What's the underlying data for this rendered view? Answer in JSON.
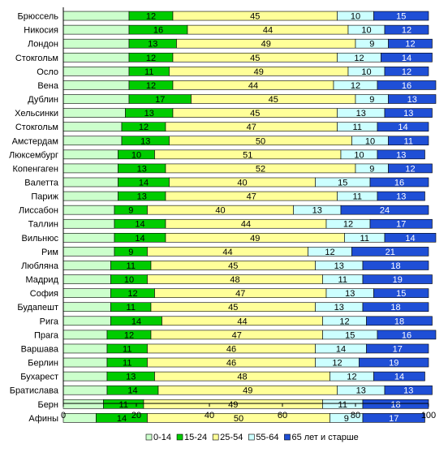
{
  "chart_data": {
    "type": "bar",
    "orientation": "horizontal",
    "stacked": true,
    "title": "",
    "xlabel": "",
    "ylabel": "",
    "xlim": [
      0,
      100
    ],
    "xticks": [
      0,
      20,
      40,
      60,
      80,
      100
    ],
    "grid": false,
    "legend_position": "bottom",
    "categories": [
      "Брюссель",
      "Никосия",
      "Лондон",
      "Стокгольм",
      "Осло",
      "Вена",
      "Дублин",
      "Хельсинки",
      "Стокгольм",
      "Амстердам",
      "Люксембург",
      "Копенгаген",
      "Валетта",
      "Париж",
      "Лиссабон",
      "Таллин",
      "Вильнюс",
      "Рим",
      "Любляна",
      "Мадрид",
      "София",
      "Будапешт",
      "Рига",
      "Прага",
      "Варшава",
      "Берлин",
      "Бухарест",
      "Братислава",
      "Берн",
      "Афины"
    ],
    "offsets": [
      18,
      18,
      18,
      18,
      18,
      18,
      18,
      17,
      16,
      16,
      15,
      15,
      15,
      15,
      14,
      14,
      14,
      14,
      13,
      13,
      13,
      13,
      13,
      12,
      12,
      12,
      12,
      12,
      11,
      9
    ],
    "series": [
      {
        "name": "0-14",
        "color": "#ccffcc",
        "values": [
          18,
          18,
          18,
          18,
          18,
          18,
          18,
          17,
          16,
          16,
          15,
          15,
          15,
          15,
          14,
          14,
          14,
          14,
          13,
          13,
          13,
          13,
          13,
          12,
          12,
          12,
          12,
          12,
          11,
          9
        ]
      },
      {
        "name": "15-24",
        "color": "#00cc00",
        "values": [
          12,
          16,
          13,
          12,
          11,
          12,
          17,
          13,
          12,
          13,
          10,
          13,
          14,
          13,
          9,
          14,
          14,
          9,
          11,
          10,
          12,
          11,
          14,
          12,
          11,
          11,
          13,
          14,
          11,
          14
        ]
      },
      {
        "name": "25-54",
        "color": "#ffff99",
        "values": [
          45,
          44,
          49,
          45,
          49,
          44,
          45,
          45,
          47,
          50,
          51,
          52,
          40,
          47,
          40,
          44,
          49,
          44,
          45,
          48,
          47,
          45,
          44,
          47,
          46,
          46,
          48,
          49,
          49,
          50
        ]
      },
      {
        "name": "55-64",
        "color": "#ccffff",
        "values": [
          10,
          10,
          9,
          12,
          10,
          12,
          9,
          13,
          11,
          10,
          10,
          9,
          15,
          11,
          13,
          12,
          11,
          12,
          13,
          11,
          13,
          13,
          12,
          15,
          14,
          12,
          12,
          13,
          11,
          9
        ]
      },
      {
        "name": "65 лет и старше",
        "color": "#1f4fd6",
        "values": [
          15,
          12,
          12,
          14,
          12,
          16,
          13,
          13,
          14,
          11,
          13,
          12,
          16,
          13,
          24,
          17,
          14,
          21,
          18,
          19,
          15,
          18,
          18,
          16,
          17,
          19,
          14,
          13,
          18,
          17
        ]
      }
    ],
    "labeled_series": [
      "15-24",
      "25-54",
      "55-64",
      "65 лет и старше"
    ]
  }
}
